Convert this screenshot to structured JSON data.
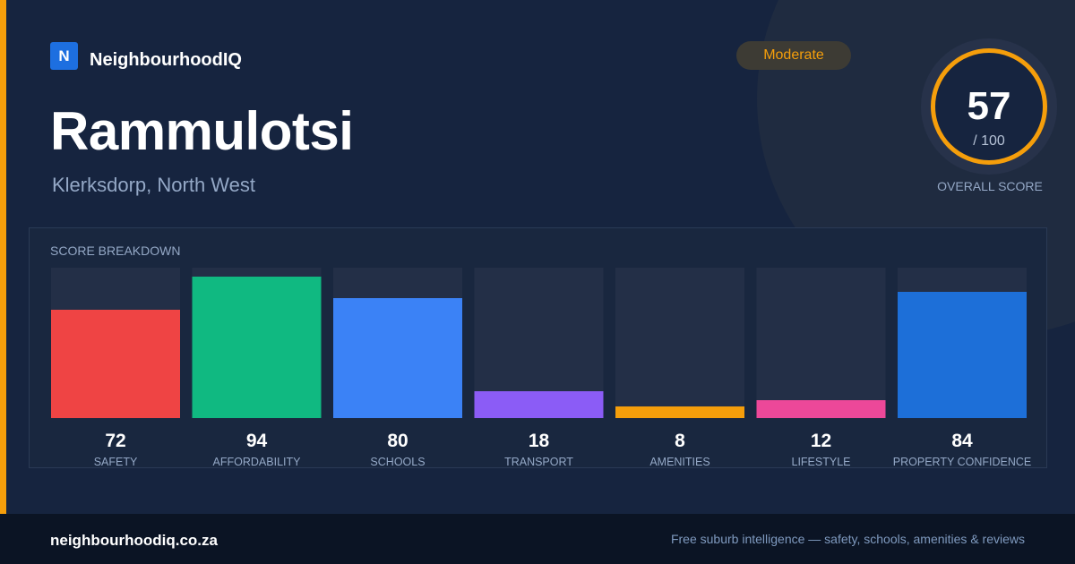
{
  "brand": {
    "logo_letter": "N",
    "name": "NeighbourhoodIQ"
  },
  "suburb": {
    "name": "Rammulotsi",
    "location": "Klerksdorp, North West"
  },
  "rating": {
    "label": "Moderate",
    "color": "#f59e0b"
  },
  "overall": {
    "score": "57",
    "max": "/ 100",
    "label": "OVERALL SCORE",
    "ring_color": "#f59e0b"
  },
  "breakdown": {
    "title": "SCORE BREAKDOWN"
  },
  "chart_data": {
    "type": "bar",
    "title": "SCORE BREAKDOWN",
    "categories": [
      "SAFETY",
      "AFFORDABILITY",
      "SCHOOLS",
      "TRANSPORT",
      "AMENITIES",
      "LIFESTYLE",
      "PROPERTY CONFIDENCE"
    ],
    "values": [
      72,
      94,
      80,
      18,
      8,
      12,
      84
    ],
    "colors": [
      "#ef4444",
      "#10b981",
      "#3b82f6",
      "#8b5cf6",
      "#f59e0b",
      "#ec4899",
      "#1d6fd8"
    ],
    "ylim": [
      0,
      100
    ],
    "grid": false
  },
  "footer": {
    "url": "neighbourhoodiq.co.za",
    "tagline": "Free suburb intelligence — safety, schools, amenities & reviews"
  }
}
